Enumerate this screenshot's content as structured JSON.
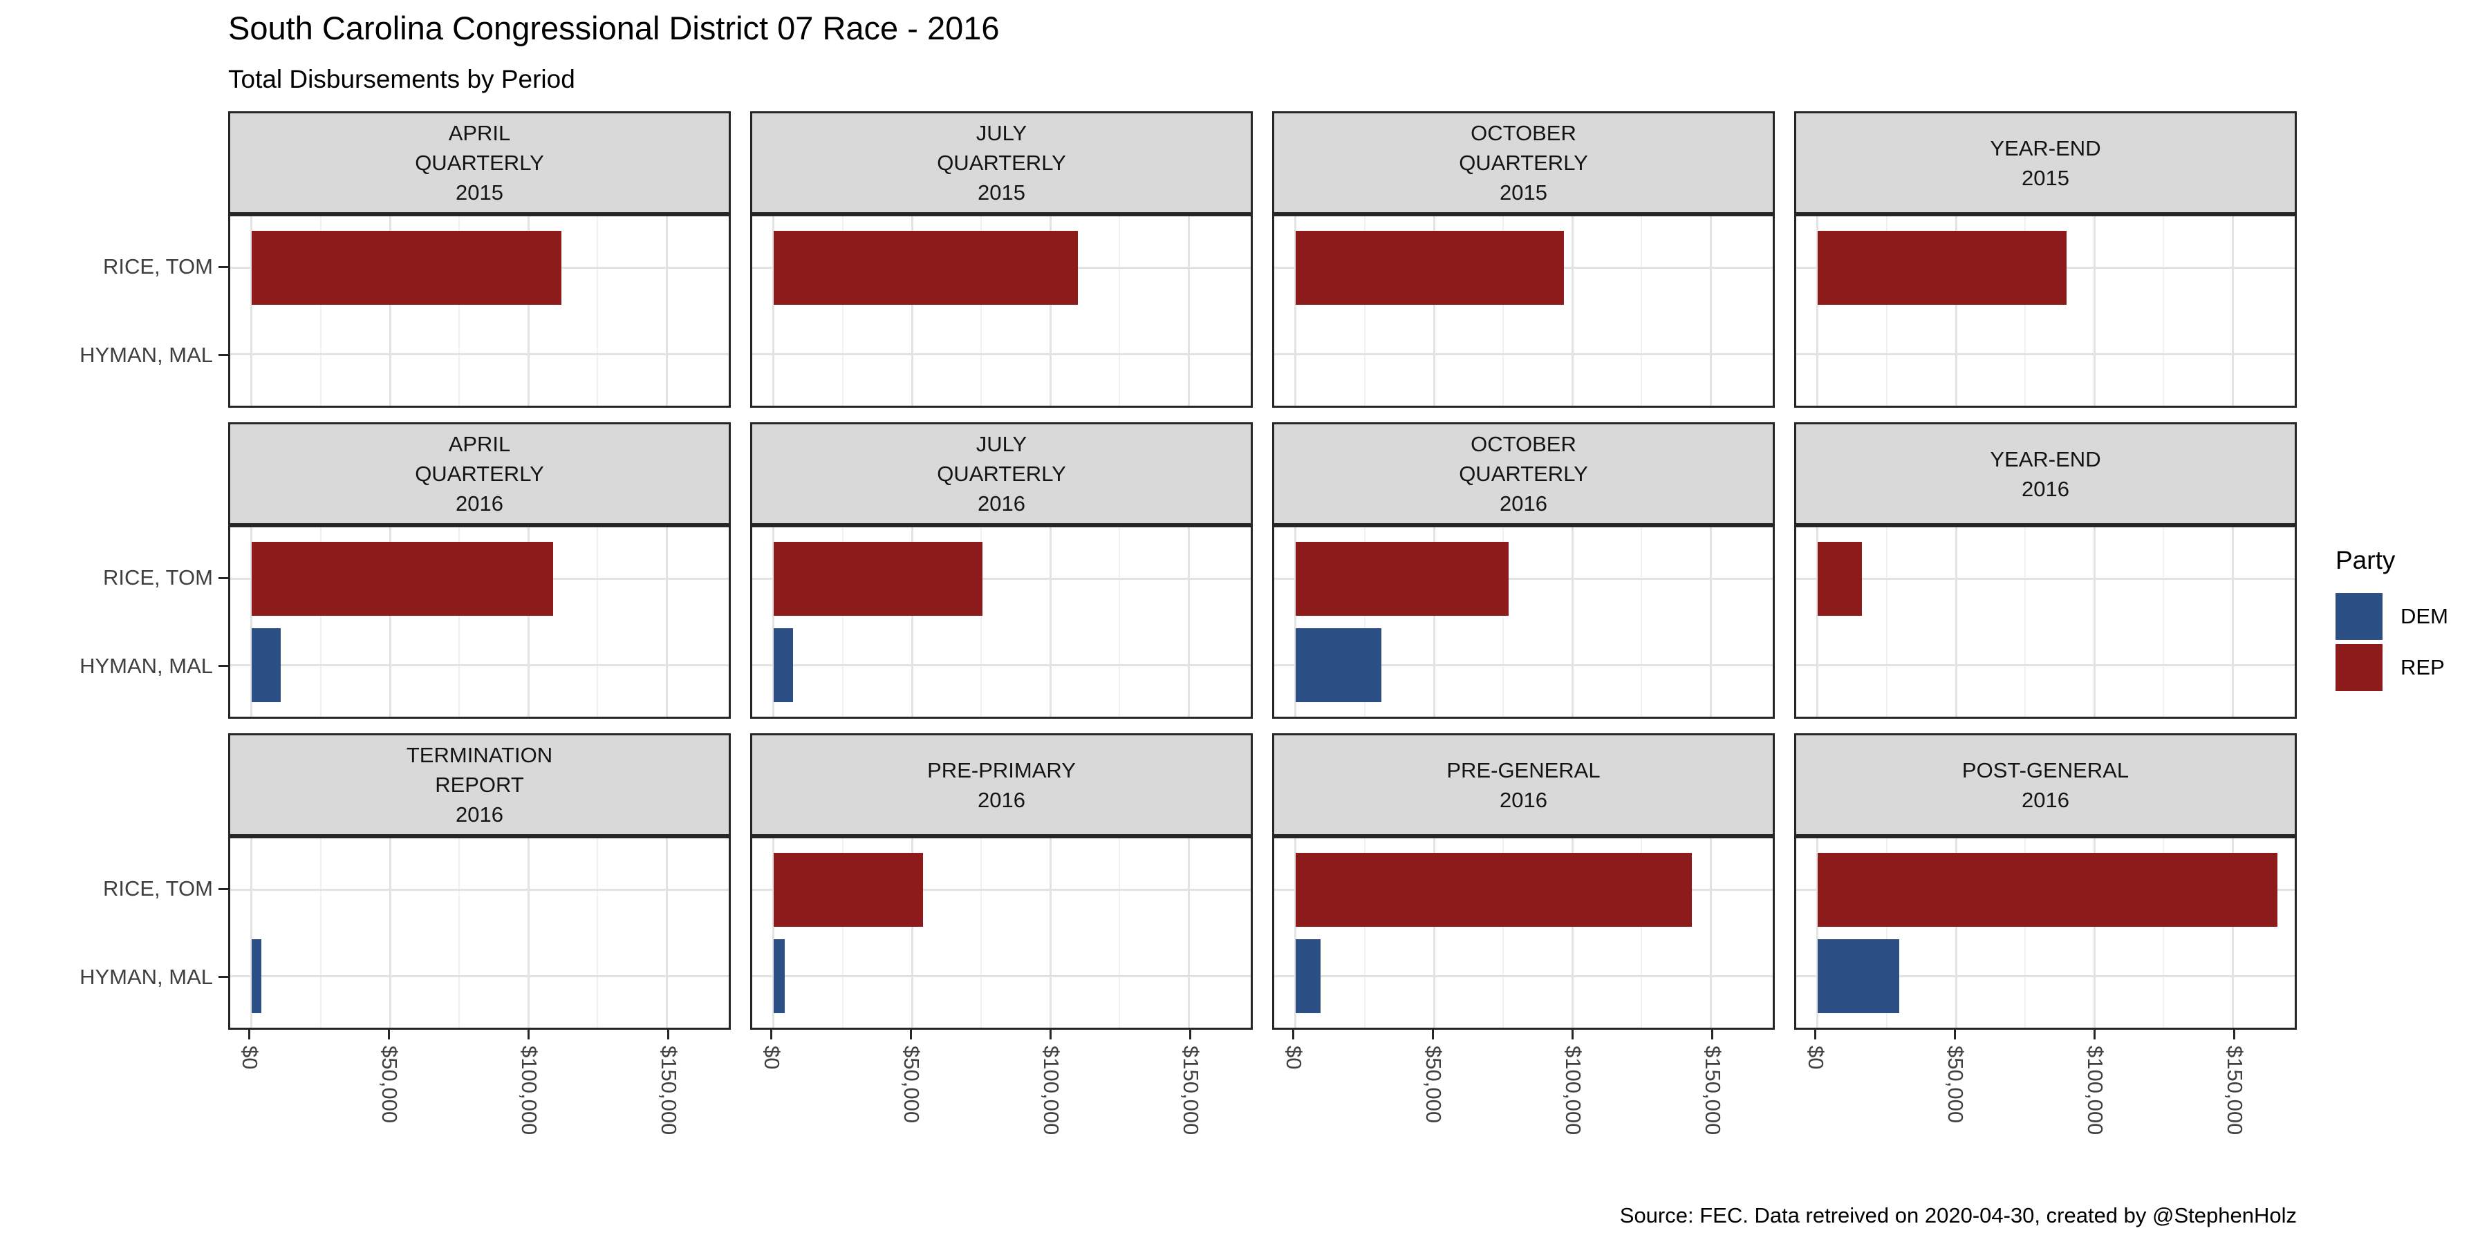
{
  "title": "South Carolina Congressional District 07 Race - 2016",
  "subtitle": "Total Disbursements by Period",
  "caption": "Source: FEC. Data retreived on 2020-04-30, created by @StephenHolz",
  "legend": {
    "title": "Party",
    "entries": [
      {
        "label": "DEM",
        "color": "#2C5085"
      },
      {
        "label": "REP",
        "color": "#8E1B1B"
      }
    ]
  },
  "colors": {
    "dem": "#2C5085",
    "rep": "#8E1B1B",
    "strip_background": "#D9D9D9",
    "panel_border": "#262626",
    "grid_major": "#E3E3E3",
    "grid_minor": "#F1F1F1",
    "axis_text": "#404040"
  },
  "y_axis": {
    "categories": [
      "RICE, TOM",
      "HYMAN, MAL"
    ]
  },
  "x_axis": {
    "tick_labels": [
      "$0",
      "$50,000",
      "$100,000",
      "$150,000"
    ],
    "tick_values": [
      0,
      50000,
      100000,
      150000
    ],
    "minor_tick_values": [
      25000,
      75000,
      125000
    ],
    "range": [
      0,
      173000
    ]
  },
  "chart_data": {
    "type": "bar",
    "orientation": "horizontal",
    "title": "South Carolina Congressional District 07 Race - 2016",
    "subtitle": "Total Disbursements by Period",
    "unit": "USD",
    "y_categories": [
      "RICE, TOM",
      "HYMAN, MAL"
    ],
    "party_by_candidate": {
      "RICE, TOM": "REP",
      "HYMAN, MAL": "DEM"
    },
    "x_ticks": [
      0,
      50000,
      100000,
      150000
    ],
    "legend_position": "right",
    "grid": true,
    "facet_layout": {
      "rows": 3,
      "cols": 4
    },
    "facets": [
      {
        "strip_lines": [
          "APRIL",
          "QUARTERLY",
          "2015"
        ],
        "values": {
          "RICE, TOM": 112000,
          "HYMAN, MAL": null
        }
      },
      {
        "strip_lines": [
          "JULY",
          "QUARTERLY",
          "2015"
        ],
        "values": {
          "RICE, TOM": 110000,
          "HYMAN, MAL": null
        }
      },
      {
        "strip_lines": [
          "OCTOBER",
          "QUARTERLY",
          "2015"
        ],
        "values": {
          "RICE, TOM": 97000,
          "HYMAN, MAL": null
        }
      },
      {
        "strip_lines": [
          "YEAR-END",
          "2015"
        ],
        "values": {
          "RICE, TOM": 90000,
          "HYMAN, MAL": null
        }
      },
      {
        "strip_lines": [
          "APRIL",
          "QUARTERLY",
          "2016"
        ],
        "values": {
          "RICE, TOM": 109000,
          "HYMAN, MAL": 10500
        }
      },
      {
        "strip_lines": [
          "JULY",
          "QUARTERLY",
          "2016"
        ],
        "values": {
          "RICE, TOM": 75500,
          "HYMAN, MAL": 7000
        }
      },
      {
        "strip_lines": [
          "OCTOBER",
          "QUARTERLY",
          "2016"
        ],
        "values": {
          "RICE, TOM": 77000,
          "HYMAN, MAL": 31000
        }
      },
      {
        "strip_lines": [
          "YEAR-END",
          "2016"
        ],
        "values": {
          "RICE, TOM": 16000,
          "HYMAN, MAL": null
        }
      },
      {
        "strip_lines": [
          "TERMINATION",
          "REPORT",
          "2016"
        ],
        "values": {
          "RICE, TOM": null,
          "HYMAN, MAL": 3500
        }
      },
      {
        "strip_lines": [
          "PRE-PRIMARY",
          "2016"
        ],
        "values": {
          "RICE, TOM": 54000,
          "HYMAN, MAL": 4000
        }
      },
      {
        "strip_lines": [
          "PRE-GENERAL",
          "2016"
        ],
        "values": {
          "RICE, TOM": 143000,
          "HYMAN, MAL": 9000
        }
      },
      {
        "strip_lines": [
          "POST-GENERAL",
          "2016"
        ],
        "values": {
          "RICE, TOM": 166000,
          "HYMAN, MAL": 29500
        }
      }
    ]
  }
}
